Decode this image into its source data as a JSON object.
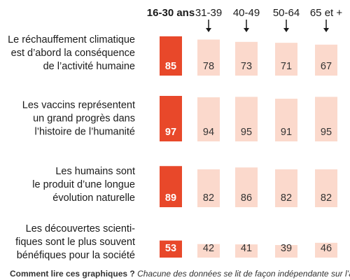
{
  "chart_data": {
    "type": "bar",
    "categories": [
      "16-30 ans",
      "31-39",
      "40-49",
      "50-64",
      "65 et +"
    ],
    "highlight_category": "16-30 ans",
    "series": [
      {
        "name": "Le réchauffement climatique est d’abord la conséquence de l’activité humaine",
        "label_lines": [
          "Le réchauffement climatique",
          "est d’abord la conséquence",
          "de l’activité humaine"
        ],
        "values": [
          85,
          78,
          73,
          71,
          67
        ]
      },
      {
        "name": "Les vaccins représentent un grand progrès dans l’histoire de l’humanité",
        "label_lines": [
          "Les vaccins représentent",
          "un grand progrès dans",
          "l’histoire de l’humanité"
        ],
        "values": [
          97,
          94,
          95,
          91,
          95
        ]
      },
      {
        "name": "Les humains sont le produit d’une longue évolution naturelle",
        "label_lines": [
          "Les humains sont",
          "le produit d’une longue",
          "évolution naturelle"
        ],
        "values": [
          89,
          82,
          86,
          82,
          82
        ]
      },
      {
        "name": "Les découvertes scientifiques sont le plus souvent bénéfiques pour la société",
        "label_lines": [
          "Les découvertes scienti-",
          "fiques sont le plus souvent",
          "bénéfiques pour la société"
        ],
        "values": [
          53,
          42,
          41,
          39,
          46
        ]
      }
    ],
    "colors": {
      "highlight": "#e8482a",
      "normal": "#fbd9cc",
      "arrow": "#1a1a1a"
    }
  },
  "footnote": {
    "bold": "Comment lire ces graphiques ?",
    "italic": "Chacune des données se lit de façon indépendante sur l’axe"
  }
}
